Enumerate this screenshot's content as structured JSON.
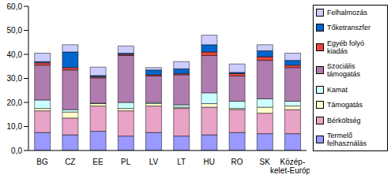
{
  "chart_data": {
    "type": "bar",
    "stacked": true,
    "grid": false,
    "categories": [
      "BG",
      "CZ",
      "EE",
      "PL",
      "LV",
      "LT",
      "HU",
      "RO",
      "SK",
      "Közép-kelet-Európa"
    ],
    "ylim": [
      0,
      60
    ],
    "yticks": [
      {
        "value": 0,
        "label": "0,0"
      },
      {
        "value": 10,
        "label": "10,0"
      },
      {
        "value": 20,
        "label": "20,0"
      },
      {
        "value": 30,
        "label": "30,0"
      },
      {
        "value": 40,
        "label": "40,0"
      },
      {
        "value": 50,
        "label": "50,0"
      },
      {
        "value": 60,
        "label": "60,0"
      }
    ],
    "legend": "right",
    "series": [
      {
        "name": "Termelő felhasználás",
        "color": "#9999ff",
        "values": [
          7.5,
          6.5,
          8,
          6,
          7.5,
          6,
          6.5,
          7.5,
          7,
          7
        ]
      },
      {
        "name": "Bérköltség",
        "color": "#e9a3c6",
        "values": [
          9,
          7,
          10.5,
          10.5,
          11,
          11.5,
          11.5,
          9.5,
          8.5,
          10
        ]
      },
      {
        "name": "Támogatás",
        "color": "#ffffcc",
        "values": [
          1,
          2.5,
          1,
          1,
          1,
          0.5,
          1.5,
          0.5,
          2.5,
          1.5
        ]
      },
      {
        "name": "Kamat",
        "color": "#ccffff",
        "values": [
          3.5,
          1,
          0.2,
          2.5,
          0.5,
          1,
          4.5,
          3,
          3.5,
          2
        ]
      },
      {
        "name": "Szociális támogatás",
        "color": "#b07cb0",
        "values": [
          14.5,
          16.5,
          10.5,
          19.5,
          11,
          12.5,
          15.5,
          10.5,
          16,
          14
        ]
      },
      {
        "name": "Egyéb folyó kiadás",
        "color": "#e8453c",
        "values": [
          1,
          1,
          0.5,
          0.5,
          0.5,
          0.5,
          1.5,
          1,
          1.5,
          1
        ]
      },
      {
        "name": "Tőketranszfer",
        "color": "#0066cc",
        "values": [
          0.5,
          6.5,
          0.5,
          0.5,
          2,
          2,
          3,
          0.5,
          2.5,
          2
        ]
      },
      {
        "name": "Felhalmozás",
        "color": "#ccccff",
        "values": [
          3.5,
          3,
          3.5,
          3,
          1,
          3,
          4,
          3.5,
          2.5,
          3
        ]
      }
    ]
  }
}
